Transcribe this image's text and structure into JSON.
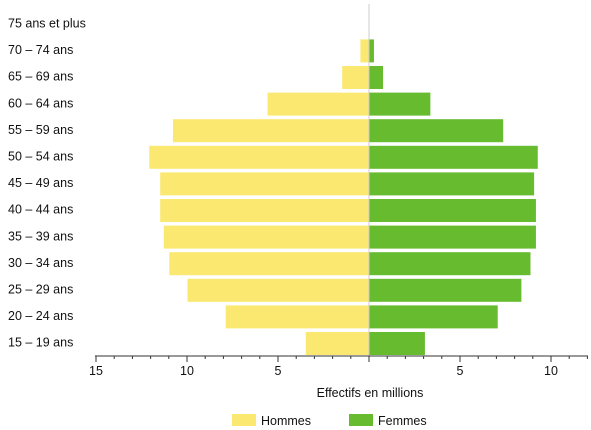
{
  "chart_data": {
    "type": "bar",
    "orientation": "horizontal",
    "subtype": "population-pyramid",
    "categories": [
      "75 ans et plus",
      "70 – 74 ans",
      "65 – 69 ans",
      "60 – 64 ans",
      "55 – 59 ans",
      "50 – 54 ans",
      "45 – 49 ans",
      "40 – 44 ans",
      "35 – 39 ans",
      "30 – 34 ans",
      "25 – 29 ans",
      "20 – 24 ans",
      "15 – 19 ans"
    ],
    "series": [
      {
        "name": "Hommes",
        "color": "#fbe870",
        "side": "left",
        "values": [
          0,
          0.5,
          1.5,
          5.6,
          10.8,
          12.1,
          11.5,
          11.5,
          11.3,
          11.0,
          10.0,
          7.9,
          3.5
        ]
      },
      {
        "name": "Femmes",
        "color": "#66bb2f",
        "side": "right",
        "values": [
          0,
          0.3,
          0.8,
          3.4,
          7.4,
          9.3,
          9.1,
          9.2,
          9.2,
          8.9,
          8.4,
          7.1,
          3.1
        ]
      }
    ],
    "xlabel": "Effectifs en millions",
    "ylabel": "",
    "xticks_left": [
      "15",
      "10",
      "5"
    ],
    "xticks_right": [
      "5",
      "10"
    ],
    "xlim_left": [
      15,
      0
    ],
    "xlim_right": [
      0,
      12
    ],
    "grid": false,
    "legend_position": "bottom-center"
  }
}
